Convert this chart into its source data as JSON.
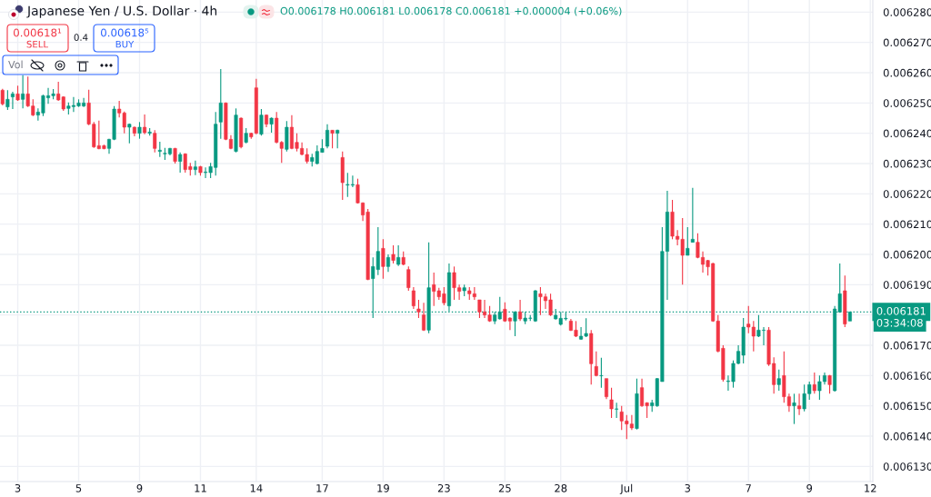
{
  "chart_data": {
    "type": "candlestick",
    "title": "Japanese Yen / U.S. Dollar · 4h",
    "subtitle": "O0.006178 H0.006181 L0.006178 C0.006181 +0.000004 (+0.06%)",
    "categories": [
      null,
      null,
      null,
      "3",
      null,
      null,
      null,
      null,
      null,
      null,
      null,
      null,
      null,
      null,
      null,
      "5",
      null,
      null,
      null,
      null,
      null,
      null,
      null,
      null,
      null,
      null,
      null,
      "9",
      null,
      null,
      null,
      null,
      null,
      null,
      null,
      null,
      null,
      null,
      null,
      "11",
      null,
      null,
      null,
      null,
      null,
      null,
      null,
      null,
      null,
      null,
      "14",
      null,
      null,
      null,
      null,
      null,
      null,
      null,
      null,
      null,
      null,
      null,
      null,
      "17",
      null,
      null,
      null,
      null,
      null,
      null,
      null,
      null,
      null,
      null,
      null,
      "19",
      null,
      null,
      null,
      null,
      null,
      null,
      null,
      null,
      null,
      null,
      null,
      "23",
      null,
      null,
      null,
      null,
      null,
      null,
      null,
      null,
      null,
      null,
      null,
      "25",
      null,
      null,
      null,
      null,
      null,
      null,
      null,
      null,
      null,
      null,
      "28",
      null,
      null,
      null,
      null,
      null,
      null,
      null,
      null,
      null,
      null,
      null,
      null,
      "Jul",
      null,
      null,
      null,
      null,
      null,
      null,
      null,
      null,
      null,
      null,
      null,
      "3",
      null,
      null,
      null,
      null,
      null,
      null,
      null,
      null,
      null,
      null,
      null,
      "7",
      null,
      null,
      null,
      null,
      null,
      null,
      null,
      null,
      null,
      null,
      null,
      "9",
      null,
      null,
      null,
      null,
      null,
      null,
      null,
      null,
      null,
      null,
      null,
      "12"
    ],
    "ohlc": [
      [
        0.0062542,
        0.0062547,
        0.0062492,
        0.0062497
      ],
      [
        0.0062487,
        0.0062542,
        0.0062477,
        0.0062512
      ],
      [
        0.006252,
        0.0062537,
        0.006248,
        0.006253
      ],
      [
        0.006253,
        0.0062557,
        0.0062507,
        0.006251
      ],
      [
        0.0062512,
        0.0062592,
        0.0062482,
        0.006253
      ],
      [
        0.006253,
        0.0062587,
        0.0062487,
        0.006249
      ],
      [
        0.006249,
        0.0062512,
        0.0062457,
        0.006246
      ],
      [
        0.006246,
        0.0062482,
        0.0062442,
        0.006247
      ],
      [
        0.0062467,
        0.0062527,
        0.0062457,
        0.0062524
      ],
      [
        0.0062517,
        0.006255,
        0.0062497,
        0.0062524
      ],
      [
        0.0062524,
        0.0062546,
        0.0062512,
        0.006253
      ],
      [
        0.006253,
        0.006257,
        0.0062507,
        0.006251
      ],
      [
        0.006252,
        0.0062522,
        0.0062474,
        0.006248
      ],
      [
        0.0062482,
        0.0062502,
        0.0062462,
        0.006249
      ],
      [
        0.0062488,
        0.006252,
        0.006247,
        0.0062492
      ],
      [
        0.006249,
        0.0062512,
        0.0062487,
        0.00625
      ],
      [
        0.006249,
        0.0062517,
        0.0062487,
        0.00625
      ],
      [
        0.00625,
        0.0062544,
        0.0062427,
        0.006243
      ],
      [
        0.006243,
        0.0062437,
        0.0062352,
        0.0062355
      ],
      [
        0.0062359,
        0.0062442,
        0.0062347,
        0.0062349
      ],
      [
        0.0062359,
        0.0062362,
        0.0062347,
        0.0062349
      ],
      [
        0.006235,
        0.0062382,
        0.0062332,
        0.006238
      ],
      [
        0.006238,
        0.006249,
        0.0062377,
        0.006248
      ],
      [
        0.006248,
        0.0062507,
        0.0062452,
        0.0062467
      ],
      [
        0.0062467,
        0.0062472,
        0.00624,
        0.006242
      ],
      [
        0.006242,
        0.0062432,
        0.0062367,
        0.006243
      ],
      [
        0.006242,
        0.0062422,
        0.006239,
        0.00624
      ],
      [
        0.00624,
        0.0062437,
        0.0062382,
        0.006242
      ],
      [
        0.006242,
        0.0062462,
        0.0062397,
        0.0062402
      ],
      [
        0.00624,
        0.0062417,
        0.0062392,
        0.0062404
      ],
      [
        0.00624,
        0.006241,
        0.0062337,
        0.006235
      ],
      [
        0.006234,
        0.0062372,
        0.0062322,
        0.0062344
      ],
      [
        0.0062332,
        0.0062352,
        0.0062312,
        0.0062334
      ],
      [
        0.0062332,
        0.0062352,
        0.0062327,
        0.006235
      ],
      [
        0.006235,
        0.0062352,
        0.00623,
        0.0062307
      ],
      [
        0.0062307,
        0.0062337,
        0.006227,
        0.006233
      ],
      [
        0.0062332,
        0.0062334,
        0.006227,
        0.006228
      ],
      [
        0.006229,
        0.0062302,
        0.006226,
        0.006228
      ],
      [
        0.006228,
        0.006231,
        0.0062262,
        0.0062289
      ],
      [
        0.006229,
        0.0062292,
        0.006226,
        0.006227
      ],
      [
        0.006227,
        0.0062287,
        0.0062252,
        0.0062272
      ],
      [
        0.006227,
        0.0062302,
        0.0062252,
        0.006229
      ],
      [
        0.0062287,
        0.006247,
        0.006226,
        0.006243
      ],
      [
        0.0062437,
        0.0062612,
        0.0062382,
        0.00625
      ],
      [
        0.00625,
        0.0062502,
        0.0062377,
        0.006238
      ],
      [
        0.006238,
        0.0062394,
        0.0062347,
        0.006235
      ],
      [
        0.006234,
        0.0062482,
        0.0062337,
        0.006246
      ],
      [
        0.006245,
        0.0062452,
        0.006235,
        0.0062355
      ],
      [
        0.006237,
        0.0062417,
        0.0062367,
        0.00624
      ],
      [
        0.00624,
        0.0062402,
        0.0062382,
        0.0062388
      ],
      [
        0.006255,
        0.006258,
        0.0062397,
        0.00624
      ],
      [
        0.0062397,
        0.006248,
        0.0062392,
        0.006246
      ],
      [
        0.006246,
        0.0062462,
        0.006242,
        0.006243
      ],
      [
        0.006243,
        0.0062452,
        0.0062402,
        0.006245
      ],
      [
        0.006245,
        0.006247,
        0.0062367,
        0.006237
      ],
      [
        0.006237,
        0.0062374,
        0.0062302,
        0.006235
      ],
      [
        0.0062347,
        0.006244,
        0.006234,
        0.006242
      ],
      [
        0.006242,
        0.006246,
        0.0062347,
        0.006235
      ],
      [
        0.006237,
        0.00624,
        0.006234,
        0.006235
      ],
      [
        0.006235,
        0.006237,
        0.0062327,
        0.006233
      ],
      [
        0.006233,
        0.006235,
        0.00623,
        0.0062307
      ],
      [
        0.0062307,
        0.0062332,
        0.006229,
        0.006232
      ],
      [
        0.00623,
        0.006236,
        0.0062297,
        0.006234
      ],
      [
        0.0062337,
        0.006238,
        0.0062337,
        0.006235
      ],
      [
        0.0062357,
        0.006243,
        0.006235,
        0.006241
      ],
      [
        0.006241,
        0.006241,
        0.006235,
        0.00624
      ],
      [
        0.00624,
        0.0062412,
        0.006235,
        0.006241
      ],
      [
        0.006232,
        0.006234,
        0.006218,
        0.0062237
      ],
      [
        0.0062229,
        0.0062269,
        0.006219,
        0.0062231
      ],
      [
        0.0062229,
        0.006226,
        0.0062222,
        0.0062231
      ],
      [
        0.006223,
        0.006225,
        0.0062168,
        0.006217
      ],
      [
        0.006217,
        0.0062172,
        0.006211,
        0.006213
      ],
      [
        0.006214,
        0.006215,
        0.0061915,
        0.0061917
      ],
      [
        0.006192,
        0.006199,
        0.006179,
        0.006196
      ],
      [
        0.006195,
        0.006209,
        0.0061932,
        0.006201
      ],
      [
        0.006202,
        0.006205,
        0.006192,
        0.006196
      ],
      [
        0.006196,
        0.0062,
        0.0061942,
        0.006199
      ],
      [
        0.0062,
        0.006203,
        0.006197,
        0.006198
      ],
      [
        0.0061967,
        0.006203,
        0.0061962,
        0.006199
      ],
      [
        0.006199,
        0.006201,
        0.0061964,
        0.0061967
      ],
      [
        0.006195,
        0.006196,
        0.006188,
        0.006189
      ],
      [
        0.006188,
        0.0061892,
        0.006182,
        0.006183
      ],
      [
        0.006182,
        0.006185,
        0.006179,
        0.006181
      ],
      [
        0.00618,
        0.006184,
        0.0061747,
        0.006175
      ],
      [
        0.006175,
        0.006204,
        0.006174,
        0.006189
      ],
      [
        0.00619,
        0.006194,
        0.006183,
        0.0061878
      ],
      [
        0.006188,
        0.006189,
        0.006185,
        0.006186
      ],
      [
        0.006187,
        0.0061892,
        0.0061832,
        0.006184
      ],
      [
        0.006183,
        0.006197,
        0.0061812,
        0.006194
      ],
      [
        0.006194,
        0.006196,
        0.006185,
        0.006189
      ],
      [
        0.006189,
        0.00619,
        0.006185,
        0.0061878
      ],
      [
        0.006188,
        0.00619,
        0.0061862,
        0.006189
      ],
      [
        0.006188,
        0.0061892,
        0.006185,
        0.006187
      ],
      [
        0.006187,
        0.0061892,
        0.006185,
        0.006186
      ],
      [
        0.006185,
        0.006185,
        0.006179,
        0.006181
      ],
      [
        0.006181,
        0.006185,
        0.006179,
        0.00618
      ],
      [
        0.00618,
        0.006183,
        0.0061777,
        0.006178
      ],
      [
        0.006178,
        0.006181,
        0.006177,
        0.00618
      ],
      [
        0.0061787,
        0.006186,
        0.0061785,
        0.006181
      ],
      [
        0.0061819,
        0.0061842,
        0.0061777,
        0.006178
      ],
      [
        0.006179,
        0.0061792,
        0.006175,
        0.006178
      ],
      [
        0.006178,
        0.0061812,
        0.006173,
        0.006181
      ],
      [
        0.006181,
        0.006185,
        0.006178,
        0.0061787
      ],
      [
        0.006178,
        0.006181,
        0.006177,
        0.006179
      ],
      [
        0.0061789,
        0.00618,
        0.006178,
        0.006179
      ],
      [
        0.006178,
        0.0061882,
        0.0061777,
        0.006188
      ],
      [
        0.006187,
        0.0061892,
        0.00618,
        0.006186
      ],
      [
        0.006186,
        0.006187,
        0.006182,
        0.0061847
      ],
      [
        0.006185,
        0.006187,
        0.0061797,
        0.00618
      ],
      [
        0.0061787,
        0.006182,
        0.0061785,
        0.0061799
      ],
      [
        0.0061769,
        0.006181,
        0.0061765,
        0.0061789
      ],
      [
        0.0061787,
        0.006181,
        0.0061782,
        0.0061789
      ],
      [
        0.006178,
        0.0061787,
        0.0061747,
        0.0061749
      ],
      [
        0.006175,
        0.006178,
        0.0061727,
        0.006173
      ],
      [
        0.006172,
        0.006176,
        0.0061718,
        0.006173
      ],
      [
        0.006173,
        0.0061789,
        0.0061727,
        0.0061739
      ],
      [
        0.0061739,
        0.006175,
        0.006157,
        0.0061639
      ],
      [
        0.006163,
        0.006168,
        0.0061597,
        0.00616
      ],
      [
        0.0061599,
        0.0061659,
        0.006156,
        0.00616
      ],
      [
        0.006159,
        0.006159,
        0.0061522,
        0.006153
      ],
      [
        0.006152,
        0.006156,
        0.006146,
        0.006149
      ],
      [
        0.0061489,
        0.006151,
        0.006146,
        0.006149
      ],
      [
        0.006148,
        0.00615,
        0.006142,
        0.006145
      ],
      [
        0.006145,
        0.006147,
        0.006139,
        0.006144
      ],
      [
        0.006144,
        0.006147,
        0.006142,
        0.0061427
      ],
      [
        0.0061425,
        0.006159,
        0.0061422,
        0.006154
      ],
      [
        0.006156,
        0.006159,
        0.0061497,
        0.00615
      ],
      [
        0.006151,
        0.0061512,
        0.006146,
        0.00615
      ],
      [
        0.00615,
        0.006152,
        0.006148,
        0.006151
      ],
      [
        0.00615,
        0.0061592,
        0.0061497,
        0.006159
      ],
      [
        0.006158,
        0.006209,
        0.006158,
        0.006201
      ],
      [
        0.006201,
        0.006221,
        0.006185,
        0.006214
      ],
      [
        0.006214,
        0.006218,
        0.006205,
        0.006206
      ],
      [
        0.006206,
        0.006208,
        0.006203,
        0.006205
      ],
      [
        0.006205,
        0.006212,
        0.00619,
        0.0061997
      ],
      [
        0.0061997,
        0.006209,
        0.0061997,
        0.006202
      ],
      [
        0.006204,
        0.006222,
        0.006204,
        0.006205
      ],
      [
        0.006204,
        0.006207,
        0.0061987,
        0.006199
      ],
      [
        0.006199,
        0.006201,
        0.006194,
        0.0061967
      ],
      [
        0.006198,
        0.0061982,
        0.006193,
        0.0061959
      ],
      [
        0.006197,
        0.0061972,
        0.0061777,
        0.006178
      ],
      [
        0.006178,
        0.00618,
        0.0061677,
        0.006168
      ],
      [
        0.006169,
        0.00617,
        0.006158,
        0.0061587
      ],
      [
        0.006158,
        0.00616,
        0.006155,
        0.0061582
      ],
      [
        0.006158,
        0.006165,
        0.006156,
        0.006164
      ],
      [
        0.006164,
        0.00617,
        0.0061637,
        0.006168
      ],
      [
        0.0061667,
        0.006179,
        0.006164,
        0.006176
      ],
      [
        0.006177,
        0.006183,
        0.006174,
        0.006176
      ],
      [
        0.006176,
        0.006178,
        0.006168,
        0.006173
      ],
      [
        0.006173,
        0.00618,
        0.0061727,
        0.006175
      ],
      [
        0.0061749,
        0.006176,
        0.00617,
        0.006175
      ],
      [
        0.006175,
        0.006176,
        0.0061632,
        0.0061637
      ],
      [
        0.006164,
        0.006166,
        0.006154,
        0.006157
      ],
      [
        0.006157,
        0.006162,
        0.006155,
        0.006159
      ],
      [
        0.00616,
        0.006168,
        0.006151,
        0.006153
      ],
      [
        0.006153,
        0.006154,
        0.006148,
        0.00615
      ],
      [
        0.00615,
        0.006154,
        0.006144,
        0.006151
      ],
      [
        0.00615,
        0.006154,
        0.006147,
        0.006149
      ],
      [
        0.006149,
        0.006157,
        0.0061482,
        0.006154
      ],
      [
        0.006154,
        0.006158,
        0.006152,
        0.006157
      ],
      [
        0.006157,
        0.006161,
        0.006154,
        0.006155
      ],
      [
        0.006155,
        0.00616,
        0.006152,
        0.006158
      ],
      [
        0.006158,
        0.006161,
        0.006157,
        0.00616
      ],
      [
        0.00616,
        0.0061602,
        0.006154,
        0.006157
      ],
      [
        0.006155,
        0.006183,
        0.0061547,
        0.006182
      ],
      [
        0.006181,
        0.006197,
        0.0061807,
        0.006187
      ],
      [
        0.006188,
        0.006193,
        0.006176,
        0.006177
      ],
      [
        0.006178,
        0.006181,
        0.006178,
        0.006181
      ],
      null,
      null,
      null,
      null
    ],
    "colors": [
      "#f23645",
      "#089981",
      "#089981",
      "#f23645",
      "#089981",
      "#f23645",
      "#f23645",
      "#089981",
      "#089981",
      "#089981",
      "#089981",
      "#f23645",
      "#f23645",
      "#089981",
      "#089981",
      "#089981",
      "#089981",
      "#f23645",
      "#f23645",
      "#f23645",
      "#f23645",
      "#089981",
      "#089981",
      "#f23645",
      "#f23645",
      "#089981",
      "#f23645",
      "#089981",
      "#f23645",
      "#089981",
      "#f23645",
      "#089981",
      "#089981",
      "#089981",
      "#f23645",
      "#089981",
      "#f23645",
      "#f23645",
      "#089981",
      "#f23645",
      "#089981",
      "#089981",
      "#089981",
      "#089981",
      "#f23645",
      "#f23645",
      "#089981",
      "#f23645",
      "#089981",
      "#f23645",
      "#f23645",
      "#089981",
      "#f23645",
      "#089981",
      "#f23645",
      "#f23645",
      "#089981",
      "#f23645",
      "#f23645",
      "#f23645",
      "#f23645",
      "#089981",
      "#089981",
      "#089981",
      "#089981",
      "#f23645",
      "#089981",
      "#f23645",
      "#089981",
      "#089981",
      "#f23645",
      "#f23645",
      "#f23645",
      "#089981",
      "#089981",
      "#f23645",
      "#089981",
      "#f23645",
      "#089981",
      "#f23645",
      "#f23645",
      "#f23645",
      "#f23645",
      "#f23645",
      "#089981",
      "#f23645",
      "#f23645",
      "#f23645",
      "#089981",
      "#f23645",
      "#f23645",
      "#089981",
      "#f23645",
      "#f23645",
      "#f23645",
      "#f23645",
      "#f23645",
      "#089981",
      "#089981",
      "#f23645",
      "#f23645",
      "#089981",
      "#f23645",
      "#089981",
      "#089981",
      "#089981",
      "#f23645",
      "#f23645",
      "#f23645",
      "#089981",
      "#089981",
      "#089981",
      "#f23645",
      "#f23645",
      "#089981",
      "#089981",
      "#f23645",
      "#f23645",
      "#089981",
      "#f23645",
      "#f23645",
      "#089981",
      "#f23645",
      "#f23645",
      "#f23645",
      "#089981",
      "#f23645",
      "#f23645",
      "#089981",
      "#089981",
      "#089981",
      "#089981",
      "#f23645",
      "#f23645",
      "#f23645",
      "#089981",
      "#089981",
      "#f23645",
      "#f23645",
      "#f23645",
      "#f23645",
      "#f23645",
      "#f23645",
      "#089981",
      "#089981",
      "#089981",
      "#089981",
      "#f23645",
      "#f23645",
      "#089981",
      "#089981",
      "#f23645",
      "#f23645",
      "#089981",
      "#f23645",
      "#f23645",
      "#089981",
      "#f23645",
      "#089981",
      "#089981",
      "#f23645",
      "#089981",
      "#089981",
      "#f23645",
      "#089981",
      "#089981",
      "#f23645",
      "#089981",
      null,
      null,
      null,
      null
    ],
    "ylim": [
      0.006125,
      0.006284
    ],
    "yticks": [
      {
        "value": 0.00613,
        "label": "0.006130"
      },
      {
        "value": 0.00614,
        "label": "0.006140"
      },
      {
        "value": 0.00615,
        "label": "0.006150"
      },
      {
        "value": 0.00616,
        "label": "0.006160"
      },
      {
        "value": 0.00617,
        "label": "0.006170"
      },
      {
        "value": 0.00618,
        "label": null
      },
      {
        "value": 0.00619,
        "label": "0.006190"
      },
      {
        "value": 0.0062,
        "label": "0.006200"
      },
      {
        "value": 0.00621,
        "label": "0.006210"
      },
      {
        "value": 0.00622,
        "label": "0.006220"
      },
      {
        "value": 0.00623,
        "label": "0.006230"
      },
      {
        "value": 0.00624,
        "label": "0.006240"
      },
      {
        "value": 0.00625,
        "label": "0.006250"
      },
      {
        "value": 0.00626,
        "label": "0.006260"
      },
      {
        "value": 0.00627,
        "label": "0.006270"
      },
      {
        "value": 0.00628,
        "label": "0.006280"
      }
    ],
    "grid": true,
    "ref_lines": [
      {
        "axis": "y",
        "value": 0.006181,
        "label": "0.006181",
        "color": "#089981",
        "line_style": "dotted"
      }
    ],
    "annotations": [
      "0.00618¹",
      "SELL",
      "0.4",
      "0.00618⁵",
      "BUY",
      "Vol",
      "03:34:08"
    ]
  }
}
